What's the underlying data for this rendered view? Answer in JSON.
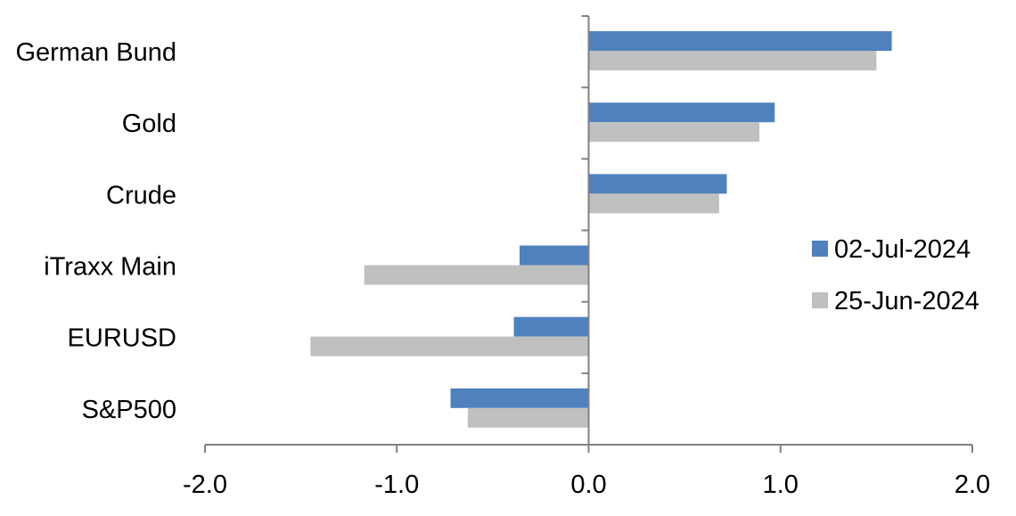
{
  "chart_data": {
    "type": "bar",
    "orientation": "horizontal",
    "categories": [
      "German Bund",
      "Gold",
      "Crude",
      "iTraxx Main",
      "EURUSD",
      "S&P500"
    ],
    "series": [
      {
        "name": "02-Jul-2024",
        "color": "#4f81bd",
        "values": [
          1.58,
          0.97,
          0.72,
          -0.36,
          -0.39,
          -0.72
        ]
      },
      {
        "name": "25-Jun-2024",
        "color": "#c0c0c0",
        "values": [
          1.5,
          0.89,
          0.68,
          -1.17,
          -1.45,
          -0.63
        ]
      }
    ],
    "xlim": [
      -2.0,
      2.0
    ],
    "xticks": [
      "-2.0",
      "-1.0",
      "0.0",
      "1.0",
      "2.0"
    ],
    "xtick_values": [
      -2,
      -1,
      0,
      1,
      2
    ],
    "title": "",
    "xlabel": "",
    "ylabel": "",
    "grid": false,
    "legend_position": "right"
  }
}
